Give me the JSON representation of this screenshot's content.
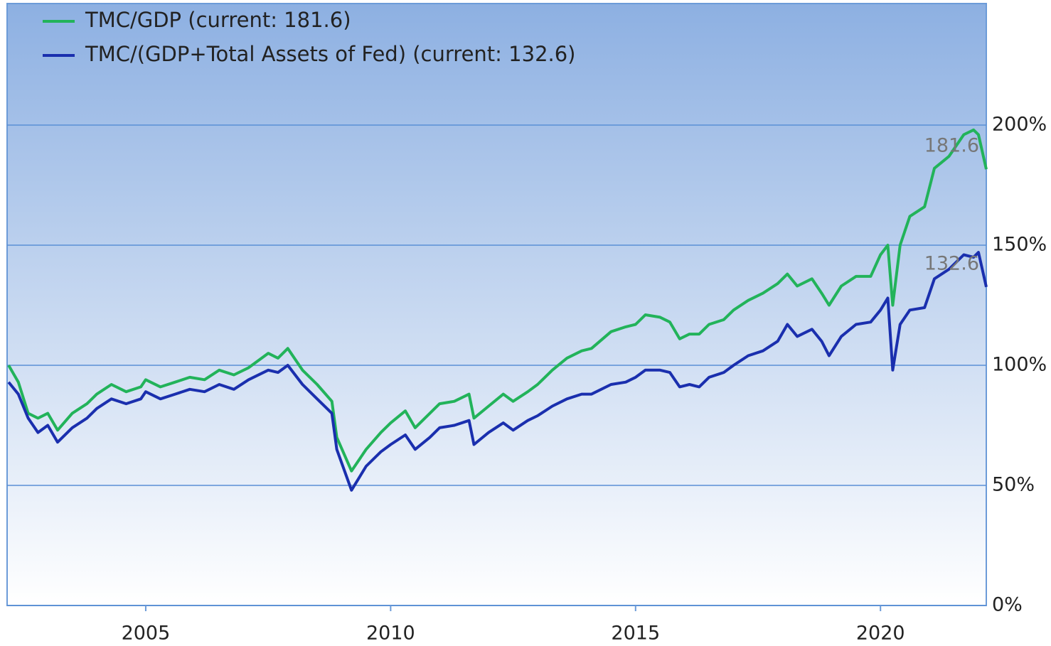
{
  "chart_data": {
    "type": "line",
    "x": [
      2002.2,
      2002.4,
      2002.6,
      2002.8,
      2003.0,
      2003.2,
      2003.5,
      2003.8,
      2004.0,
      2004.3,
      2004.6,
      2004.9,
      2005.0,
      2005.3,
      2005.6,
      2005.9,
      2006.2,
      2006.5,
      2006.8,
      2007.1,
      2007.5,
      2007.7,
      2007.9,
      2008.2,
      2008.5,
      2008.8,
      2008.9,
      2009.2,
      2009.5,
      2009.8,
      2010.0,
      2010.3,
      2010.5,
      2010.8,
      2011.0,
      2011.3,
      2011.6,
      2011.7,
      2012.0,
      2012.3,
      2012.5,
      2012.8,
      2013.0,
      2013.3,
      2013.6,
      2013.9,
      2014.1,
      2014.5,
      2014.8,
      2015.0,
      2015.2,
      2015.5,
      2015.7,
      2015.9,
      2016.1,
      2016.3,
      2016.5,
      2016.8,
      2017.0,
      2017.3,
      2017.6,
      2017.9,
      2018.1,
      2018.3,
      2018.6,
      2018.8,
      2018.95,
      2019.2,
      2019.5,
      2019.8,
      2020.0,
      2020.15,
      2020.25,
      2020.4,
      2020.6,
      2020.9,
      2021.1,
      2021.4,
      2021.7,
      2021.9,
      2022.0,
      2022.16
    ],
    "series": [
      {
        "name": "TMC/GDP (current: 181.6)",
        "color": "#22b35a",
        "values": [
          100,
          93,
          80,
          78,
          80,
          73,
          80,
          84,
          88,
          92,
          89,
          91,
          94,
          91,
          93,
          95,
          94,
          98,
          96,
          99,
          105,
          103,
          107,
          98,
          92,
          85,
          70,
          56,
          65,
          72,
          76,
          81,
          74,
          80,
          84,
          85,
          88,
          78,
          83,
          88,
          85,
          89,
          92,
          98,
          103,
          106,
          107,
          114,
          116,
          117,
          121,
          120,
          118,
          111,
          113,
          113,
          117,
          119,
          123,
          127,
          130,
          134,
          138,
          133,
          136,
          130,
          125,
          133,
          137,
          137,
          146,
          150,
          125,
          150,
          162,
          166,
          182,
          187,
          196,
          198,
          196,
          181.6
        ]
      },
      {
        "name": "TMC/(GDP+Total Assets of Fed) (current: 132.6)",
        "color": "#1a2fae",
        "values": [
          93,
          88,
          78,
          72,
          75,
          68,
          74,
          78,
          82,
          86,
          84,
          86,
          89,
          86,
          88,
          90,
          89,
          92,
          90,
          94,
          98,
          97,
          100,
          92,
          86,
          80,
          65,
          48,
          58,
          64,
          67,
          71,
          65,
          70,
          74,
          75,
          77,
          67,
          72,
          76,
          73,
          77,
          79,
          83,
          86,
          88,
          88,
          92,
          93,
          95,
          98,
          98,
          97,
          91,
          92,
          91,
          95,
          97,
          100,
          104,
          106,
          110,
          117,
          112,
          115,
          110,
          104,
          112,
          117,
          118,
          123,
          128,
          98,
          117,
          123,
          124,
          136,
          140,
          146,
          145,
          147,
          132.6
        ]
      }
    ],
    "annotations": [
      "181.6",
      "132.6"
    ],
    "xlim": [
      2002.17,
      2022.16
    ],
    "xticks": [
      2005,
      2010,
      2015,
      2020
    ],
    "ylim": [
      0,
      250
    ],
    "yticks": [
      {
        "value": 0,
        "label": "0%"
      },
      {
        "value": 50,
        "label": "50%"
      },
      {
        "value": 100,
        "label": "100%"
      },
      {
        "value": 150,
        "label": "150%"
      },
      {
        "value": 200,
        "label": "200%"
      }
    ],
    "grid": true,
    "legend": "top-left"
  }
}
